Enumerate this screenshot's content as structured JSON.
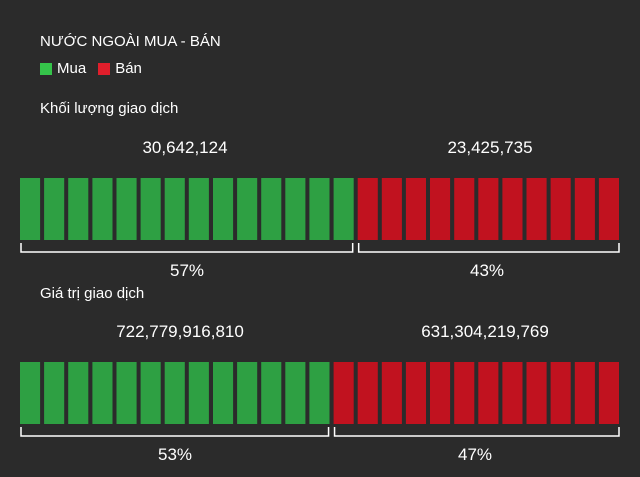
{
  "title": "NƯỚC NGOÀI MUA - BÁN",
  "legend": {
    "buy_label": "Mua",
    "sell_label": "Bán",
    "buy_color": "#2ea043",
    "sell_color": "#c1121f"
  },
  "chart_data": [
    {
      "type": "bar",
      "title": "Khối lượng giao dịch",
      "categories": [
        "Mua",
        "Bán"
      ],
      "values": [
        30642124,
        23425735
      ],
      "value_labels": [
        "30,642,124",
        "23,425,735"
      ],
      "percent_labels": [
        "57%",
        "43%"
      ],
      "percents": [
        57,
        43
      ]
    },
    {
      "type": "bar",
      "title": "Giá trị giao dịch",
      "categories": [
        "Mua",
        "Bán"
      ],
      "values": [
        722779916810,
        631304219769
      ],
      "value_labels": [
        "722,779,916,810",
        "631,304,219,769"
      ],
      "percent_labels": [
        "53%",
        "47%"
      ],
      "percents": [
        53,
        47
      ]
    }
  ]
}
